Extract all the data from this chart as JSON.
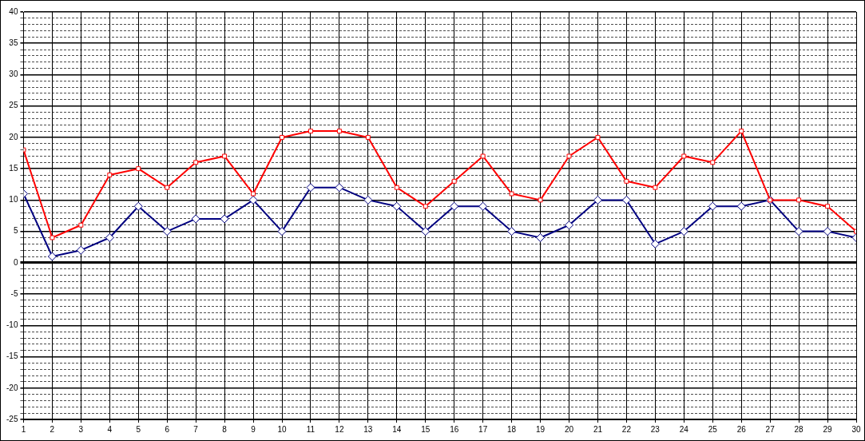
{
  "chart_data": {
    "type": "line",
    "x": [
      1,
      2,
      3,
      4,
      5,
      6,
      7,
      8,
      9,
      10,
      11,
      12,
      13,
      14,
      15,
      16,
      17,
      18,
      19,
      20,
      21,
      22,
      23,
      24,
      25,
      26,
      27,
      28,
      29,
      30
    ],
    "series": [
      {
        "color": "#ff0000",
        "marker": "square",
        "values": [
          18,
          4,
          6,
          14,
          15,
          12,
          16,
          17,
          11,
          20,
          21,
          21,
          20,
          12,
          9,
          13,
          17,
          11,
          10,
          17,
          20,
          13,
          12,
          17,
          16,
          21,
          10,
          10,
          9,
          5
        ]
      },
      {
        "color": "#000080",
        "marker": "diamond",
        "values": [
          11,
          1,
          2,
          4,
          9,
          5,
          7,
          7,
          10,
          5,
          12,
          12,
          10,
          9,
          5,
          9,
          9,
          5,
          4,
          6,
          10,
          10,
          3,
          5,
          9,
          9,
          10,
          5,
          5,
          4
        ]
      }
    ],
    "xlim": [
      1,
      30
    ],
    "xticks": [
      1,
      2,
      3,
      4,
      5,
      6,
      7,
      8,
      9,
      10,
      11,
      12,
      13,
      14,
      15,
      16,
      17,
      18,
      19,
      20,
      21,
      22,
      23,
      24,
      25,
      26,
      27,
      28,
      29,
      30
    ],
    "ylim": [
      -25,
      40
    ],
    "yticks": [
      -25,
      {
        "value": -24,
        "label": null
      },
      {
        "value": -23,
        "label": null
      },
      {
        "value": -22,
        "label": null
      },
      {
        "value": -21,
        "label": null
      },
      -20,
      {
        "value": -19,
        "label": null
      },
      {
        "value": -18,
        "label": null
      },
      {
        "value": -17,
        "label": null
      },
      {
        "value": -16,
        "label": null
      },
      -15,
      {
        "value": -14,
        "label": null
      },
      {
        "value": -13,
        "label": null
      },
      {
        "value": -12,
        "label": null
      },
      {
        "value": -11,
        "label": null
      },
      -10,
      {
        "value": -9,
        "label": null
      },
      {
        "value": -8,
        "label": null
      },
      {
        "value": -7,
        "label": null
      },
      {
        "value": -6,
        "label": null
      },
      -5,
      {
        "value": -4,
        "label": null
      },
      {
        "value": -3,
        "label": null
      },
      {
        "value": -2,
        "label": null
      },
      {
        "value": -1,
        "label": null
      },
      0,
      {
        "value": 1,
        "label": null
      },
      {
        "value": 2,
        "label": null
      },
      {
        "value": 3,
        "label": null
      },
      {
        "value": 4,
        "label": null
      },
      5,
      {
        "value": 6,
        "label": null
      },
      {
        "value": 7,
        "label": null
      },
      {
        "value": 8,
        "label": null
      },
      {
        "value": 9,
        "label": null
      },
      10,
      {
        "value": 11,
        "label": null
      },
      {
        "value": 12,
        "label": null
      },
      {
        "value": 13,
        "label": null
      },
      {
        "value": 14,
        "label": null
      },
      15,
      {
        "value": 16,
        "label": null
      },
      {
        "value": 17,
        "label": null
      },
      {
        "value": 18,
        "label": null
      },
      {
        "value": 19,
        "label": null
      },
      20,
      {
        "value": 21,
        "label": null
      },
      {
        "value": 22,
        "label": null
      },
      {
        "value": 23,
        "label": null
      },
      {
        "value": 24,
        "label": null
      },
      25,
      {
        "value": 26,
        "label": null
      },
      {
        "value": 27,
        "label": null
      },
      {
        "value": 28,
        "label": null
      },
      {
        "value": 29,
        "label": null
      },
      30,
      {
        "value": 31,
        "label": null
      },
      {
        "value": 32,
        "label": null
      },
      {
        "value": 33,
        "label": null
      },
      {
        "value": 34,
        "label": null
      },
      35,
      {
        "value": 36,
        "label": null
      },
      {
        "value": 37,
        "label": null
      },
      {
        "value": 38,
        "label": null
      },
      {
        "value": 39,
        "label": null
      },
      40
    ],
    "grid": true,
    "legend": false
  }
}
